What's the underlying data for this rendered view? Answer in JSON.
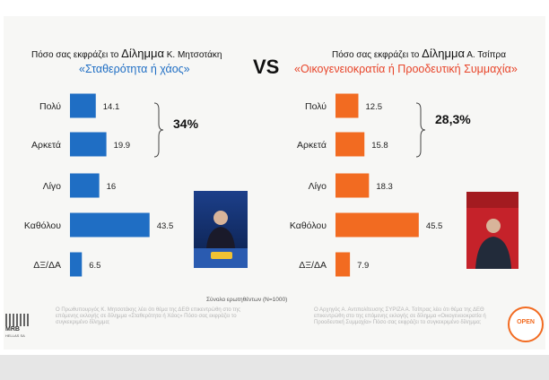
{
  "left": {
    "question_prefix": "Πόσο σας εκφράζει το",
    "question_dilemma": "Δίλημμα",
    "question_name": "Κ. Μητσοτάκη",
    "subtitle": "«Σταθερότητα ή χάος»",
    "total_label": "34%",
    "color": "#1f6ec4"
  },
  "right": {
    "question_prefix": "Πόσο σας εκφράζει το",
    "question_dilemma": "Δίλημμα",
    "question_name": "Α. Τσίπρα",
    "subtitle": "«Οικογενειοκρατία ή Προοδευτική Συμμαχία»",
    "total_label": "28,3%",
    "color": "#f26b21"
  },
  "vs_label": "VS",
  "sample_note": "Σύνολο ερωτηθέντων (N=1000)",
  "left_logo_text": "MRB",
  "left_logo_sub": "HELLAS SA",
  "right_logo_text": "OPEN",
  "footnote_left": "Ο Πρωθυπουργός Κ. Μητσοτάκης λέει ότι θέμα της ΔΕΘ επικεντρώθη στο της επόμενης εκλογής σε δίλημμα «Σταθερότητα ή Χάος» Πόσο σας εκφράζει το συγκεκριμένο δίλημμα;",
  "footnote_right": "Ο Αρχηγός Α. Αντιπολίτευσης ΣΥΡΙΖΑ Α. Τσίπρας λέει ότι θέμα της ΔΕΘ επικεντρώθη στο της επόμενης εκλογής σε δίλημμα «Οικογενειοκρατία ή Προοδευτική Συμμαχία» Πόσο σας εκφράζει το συγκεκριμένο δίλημμα;",
  "chart_data": [
    {
      "type": "bar",
      "orientation": "horizontal",
      "title": "Πόσο σας εκφράζει το Δίλημμα Κ. Μητσοτάκη «Σταθερότητα ή χάος»",
      "categories": [
        "Πολύ",
        "Αρκετά",
        "Λίγο",
        "Καθόλου",
        "ΔΞ/ΔΑ"
      ],
      "values": [
        14.1,
        19.9,
        16,
        43.5,
        6.5
      ],
      "value_labels": [
        "14.1",
        "19.9",
        "16",
        "43.5",
        "6.5"
      ],
      "annotation": "34%",
      "color": "#1f6ec4",
      "xlim": [
        0,
        50
      ]
    },
    {
      "type": "bar",
      "orientation": "horizontal",
      "title": "Πόσο σας εκφράζει το Δίλημμα Α. Τσίπρα «Οικογενειοκρατία ή Προοδευτική Συμμαχία»",
      "categories": [
        "Πολύ",
        "Αρκετά",
        "Λίγο",
        "Καθόλου",
        "ΔΞ/ΔΑ"
      ],
      "values": [
        12.5,
        15.8,
        18.3,
        45.5,
        7.9
      ],
      "value_labels": [
        "12.5",
        "15.8",
        "18.3",
        "45.5",
        "7.9"
      ],
      "annotation": "28,3%",
      "color": "#f26b21",
      "xlim": [
        0,
        50
      ]
    }
  ]
}
